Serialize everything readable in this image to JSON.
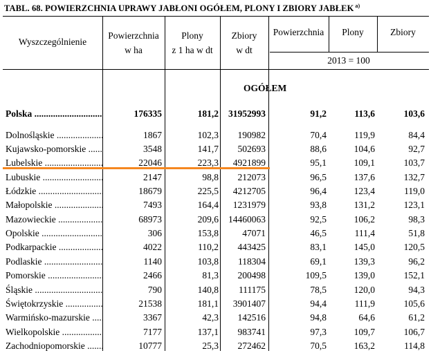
{
  "title": "TABL. 68. POWIERZCHNIA UPRAWY JABŁONI OGÓŁEM, PLONY I ZBIORY JABŁEK",
  "title_note": "a)",
  "headers": {
    "col0": "Wyszczególnienie",
    "col1": [
      "Powierzchnia",
      "w ha"
    ],
    "col2": [
      "Plony",
      "z 1 ha w dt"
    ],
    "col3": [
      "Zbiory",
      "w dt"
    ],
    "col4": "Powierzchnia",
    "col5": "Plony",
    "col6": "Zbiory",
    "index_base": "2013 = 100"
  },
  "section": "OGÓŁEM",
  "highlight_color": "#f5871f",
  "rows": [
    {
      "name": "Polska",
      "v": [
        "176335",
        "181,2",
        "31952993",
        "91,2",
        "113,6",
        "103,6"
      ],
      "bold": true
    },
    {
      "name": "Dolnośląskie",
      "v": [
        "1867",
        "102,3",
        "190982",
        "70,4",
        "119,9",
        "84,4"
      ]
    },
    {
      "name": "Kujawsko-pomorskie",
      "v": [
        "3548",
        "141,7",
        "502693",
        "88,6",
        "104,6",
        "92,7"
      ]
    },
    {
      "name": "Lubelskie",
      "v": [
        "22046",
        "223,3",
        "4921899",
        "95,1",
        "109,1",
        "103,7"
      ]
    },
    {
      "name": "Lubuskie",
      "v": [
        "2147",
        "98,8",
        "212073",
        "96,5",
        "137,6",
        "132,7"
      ]
    },
    {
      "name": "Łódzkie",
      "v": [
        "18679",
        "225,5",
        "4212705",
        "96,4",
        "123,4",
        "119,0"
      ]
    },
    {
      "name": "Małopolskie",
      "v": [
        "7493",
        "164,4",
        "1231979",
        "93,8",
        "131,2",
        "123,1"
      ]
    },
    {
      "name": "Mazowieckie",
      "v": [
        "68973",
        "209,6",
        "14460063",
        "92,5",
        "106,2",
        "98,3"
      ]
    },
    {
      "name": "Opolskie",
      "v": [
        "306",
        "153,8",
        "47071",
        "46,5",
        "111,4",
        "51,8"
      ]
    },
    {
      "name": "Podkarpackie",
      "v": [
        "4022",
        "110,2",
        "443425",
        "83,1",
        "145,0",
        "120,5"
      ]
    },
    {
      "name": "Podlaskie",
      "v": [
        "1140",
        "103,8",
        "118304",
        "69,1",
        "139,3",
        "96,2"
      ]
    },
    {
      "name": "Pomorskie",
      "v": [
        "2466",
        "81,3",
        "200498",
        "109,5",
        "139,0",
        "152,1"
      ]
    },
    {
      "name": "Śląskie",
      "v": [
        "790",
        "140,8",
        "111175",
        "78,5",
        "120,0",
        "94,3"
      ]
    },
    {
      "name": "Świętokrzyskie",
      "v": [
        "21538",
        "181,1",
        "3901407",
        "94,4",
        "111,9",
        "105,6"
      ]
    },
    {
      "name": "Warmińsko-mazurskie",
      "v": [
        "3367",
        "42,3",
        "142516",
        "94,8",
        "64,6",
        "61,2"
      ]
    },
    {
      "name": "Wielkopolskie",
      "v": [
        "7177",
        "137,1",
        "983741",
        "97,3",
        "109,7",
        "106,7"
      ]
    },
    {
      "name": "Zachodniopomorskie",
      "v": [
        "10777",
        "25,3",
        "272462",
        "70,5",
        "163,2",
        "114,8"
      ]
    }
  ]
}
